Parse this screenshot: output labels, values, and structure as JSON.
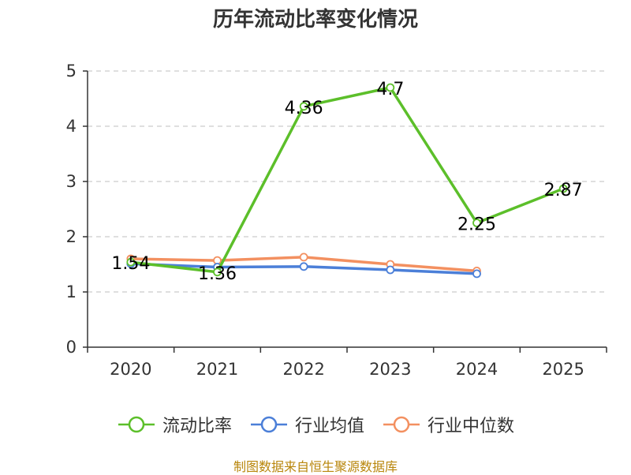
{
  "colors": {
    "current_ratio": "#5cbf2a",
    "industry_avg": "#4b7fd8",
    "industry_median": "#f39060",
    "axis": "#333333",
    "grid": "#cccccc",
    "source": "#b8860b"
  },
  "chart_data": {
    "type": "line",
    "title": "历年流动比率变化情况",
    "xlabel": "",
    "ylabel": "",
    "categories": [
      "2020",
      "2021",
      "2022",
      "2023",
      "2024",
      "2025"
    ],
    "ylim": [
      0,
      5
    ],
    "yticks": [
      0,
      1,
      2,
      3,
      4,
      5
    ],
    "grid": true,
    "legend_position": "bottom",
    "series": [
      {
        "name": "流动比率",
        "values": [
          1.54,
          1.36,
          4.36,
          4.7,
          2.25,
          2.87
        ],
        "show_labels": true,
        "color_key": "current_ratio"
      },
      {
        "name": "行业均值",
        "values": [
          1.51,
          1.45,
          1.46,
          1.4,
          1.33,
          null
        ],
        "show_labels": false,
        "color_key": "industry_avg"
      },
      {
        "name": "行业中位数",
        "values": [
          1.6,
          1.57,
          1.63,
          1.5,
          1.38,
          null
        ],
        "show_labels": false,
        "color_key": "industry_median"
      }
    ]
  },
  "source_text": "制图数据来自恒生聚源数据库"
}
